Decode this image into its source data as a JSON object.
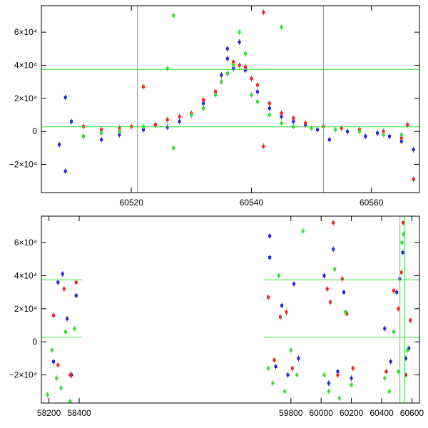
{
  "chart_data": [
    {
      "type": "scatter",
      "xlim": [
        60505,
        60568
      ],
      "ylim": [
        -37000,
        76000
      ],
      "x_ticks": [
        {
          "value": 60520,
          "label": "60520"
        },
        {
          "value": 60540,
          "label": "60540"
        },
        {
          "value": 60560,
          "label": "60560"
        }
      ],
      "y_ticks": [
        {
          "value": -20000,
          "label": "−2×10⁴"
        },
        {
          "value": 0,
          "label": "0"
        },
        {
          "value": 20000,
          "label": "2×10⁴"
        },
        {
          "value": 40000,
          "label": "4×10⁴"
        },
        {
          "value": 60000,
          "label": "6×10⁴"
        }
      ],
      "hlines": [
        37500,
        2800
      ],
      "vlines": [
        60521,
        60552
      ],
      "line_color": "#33dd33",
      "series": [
        {
          "color": "#2222dd",
          "points": [
            [
              60508,
              -8000
            ],
            [
              60509,
              20500
            ],
            [
              60509,
              -24000
            ],
            [
              60510,
              6000
            ],
            [
              60512,
              -3000
            ],
            [
              60515,
              -5000
            ],
            [
              60518,
              -2000
            ],
            [
              60522,
              1000
            ],
            [
              60526,
              2500
            ],
            [
              60528,
              6000
            ],
            [
              60530,
              10000
            ],
            [
              60532,
              17000
            ],
            [
              60534,
              24000
            ],
            [
              60535,
              34000
            ],
            [
              60536,
              44000
            ],
            [
              60536,
              50000
            ],
            [
              60537,
              38000
            ],
            [
              60538,
              54000
            ],
            [
              60539,
              37000
            ],
            [
              60541,
              24000
            ],
            [
              60543,
              14000
            ],
            [
              60545,
              9000
            ],
            [
              60547,
              6000
            ],
            [
              60549,
              4000
            ],
            [
              60551,
              1000
            ],
            [
              60553,
              -5000
            ],
            [
              60556,
              0
            ],
            [
              60559,
              -3000
            ],
            [
              60561,
              -1000
            ],
            [
              60563,
              -3000
            ],
            [
              60565,
              -6000
            ],
            [
              60567,
              -11000
            ]
          ]
        },
        {
          "color": "#ee2222",
          "points": [
            [
              60512,
              3000
            ],
            [
              60515,
              1000
            ],
            [
              60518,
              2000
            ],
            [
              60520,
              3000
            ],
            [
              60522,
              27000
            ],
            [
              60524,
              4000
            ],
            [
              60526,
              7000
            ],
            [
              60528,
              9000
            ],
            [
              60530,
              11000
            ],
            [
              60532,
              19000
            ],
            [
              60534,
              24000
            ],
            [
              60535,
              30000
            ],
            [
              60536,
              35000
            ],
            [
              60537,
              42000
            ],
            [
              60538,
              40000
            ],
            [
              60539,
              39000
            ],
            [
              60540,
              32000
            ],
            [
              60541,
              28000
            ],
            [
              60542,
              72000
            ],
            [
              60542,
              -9000
            ],
            [
              60543,
              17000
            ],
            [
              60545,
              11000
            ],
            [
              60547,
              8000
            ],
            [
              60549,
              5000
            ],
            [
              60552,
              3000
            ],
            [
              60555,
              2000
            ],
            [
              60558,
              1000
            ],
            [
              60562,
              0
            ],
            [
              60565,
              -4000
            ],
            [
              60567,
              -29000
            ],
            [
              60566,
              4000
            ]
          ]
        },
        {
          "color": "#33dd33",
          "points": [
            [
              60512,
              -3000
            ],
            [
              60515,
              -1000
            ],
            [
              60518,
              0
            ],
            [
              60522,
              3000
            ],
            [
              60526,
              38000
            ],
            [
              60527,
              70000
            ],
            [
              60527,
              -10000
            ],
            [
              60530,
              10000
            ],
            [
              60532,
              14000
            ],
            [
              60534,
              22000
            ],
            [
              60535,
              30000
            ],
            [
              60536,
              35000
            ],
            [
              60537,
              40000
            ],
            [
              60538,
              60000
            ],
            [
              60539,
              47000
            ],
            [
              60540,
              22000
            ],
            [
              60541,
              18000
            ],
            [
              60543,
              10000
            ],
            [
              60545,
              5000
            ],
            [
              60547,
              3000
            ],
            [
              60550,
              2000
            ],
            [
              60554,
              1000
            ],
            [
              60558,
              0
            ],
            [
              60562,
              -2000
            ],
            [
              60565,
              -2000
            ],
            [
              60545,
              63000
            ]
          ]
        }
      ]
    },
    {
      "type": "scatter",
      "xlim": [
        58150,
        60650
      ],
      "ylim": [
        -37000,
        76000
      ],
      "x_ticks": [
        {
          "value": 58200,
          "label": "58200"
        },
        {
          "value": 58400,
          "label": "58400"
        },
        {
          "value": 59800,
          "label": "59800"
        },
        {
          "value": 60000,
          "label": "60000"
        },
        {
          "value": 60200,
          "label": "60200"
        },
        {
          "value": 60400,
          "label": "60400"
        },
        {
          "value": 60600,
          "label": "60600"
        }
      ],
      "x_breaks": [
        [
          58420,
          59620
        ]
      ],
      "y_ticks": [
        {
          "value": -20000,
          "label": "−2×10⁴"
        },
        {
          "value": 0,
          "label": "0"
        },
        {
          "value": 20000,
          "label": "2×10⁴"
        },
        {
          "value": 40000,
          "label": "4×10⁴"
        },
        {
          "value": 60000,
          "label": "6×10⁴"
        }
      ],
      "hlines": [
        37500,
        2800
      ],
      "vlines": [
        60521,
        60552
      ],
      "line_color": "#33dd33",
      "series": [
        {
          "color": "#2222dd",
          "points": [
            [
              58230,
              -12000
            ],
            [
              58260,
              36000
            ],
            [
              58290,
              41000
            ],
            [
              58320,
              14000
            ],
            [
              58350,
              -20000
            ],
            [
              58380,
              28000
            ],
            [
              59660,
              64000
            ],
            [
              59660,
              51000
            ],
            [
              59700,
              -15000
            ],
            [
              59740,
              22000
            ],
            [
              59780,
              -20000
            ],
            [
              59820,
              35000
            ],
            [
              59850,
              -10000
            ],
            [
              60020,
              40000
            ],
            [
              60050,
              -25000
            ],
            [
              60080,
              56000
            ],
            [
              60110,
              -18000
            ],
            [
              60150,
              30000
            ],
            [
              60200,
              -22000
            ],
            [
              60420,
              8000
            ],
            [
              60460,
              -12000
            ],
            [
              60500,
              30000
            ],
            [
              60520,
              38000
            ],
            [
              60540,
              54000
            ],
            [
              60560,
              -10000
            ],
            [
              60580,
              -4000
            ]
          ]
        },
        {
          "color": "#ee2222",
          "points": [
            [
              58230,
              16000
            ],
            [
              58260,
              -14000
            ],
            [
              58300,
              32000
            ],
            [
              58340,
              -20000
            ],
            [
              58380,
              36000
            ],
            [
              59650,
              27000
            ],
            [
              59690,
              -11000
            ],
            [
              59730,
              15000
            ],
            [
              59770,
              18000
            ],
            [
              59810,
              -16000
            ],
            [
              60040,
              32000
            ],
            [
              60060,
              24000
            ],
            [
              60080,
              72000
            ],
            [
              60110,
              -20000
            ],
            [
              60140,
              38000
            ],
            [
              60170,
              17000
            ],
            [
              60210,
              -16000
            ],
            [
              60430,
              -18000
            ],
            [
              60480,
              31000
            ],
            [
              60510,
              20000
            ],
            [
              60530,
              42000
            ],
            [
              60542,
              72000
            ],
            [
              60560,
              -20000
            ],
            [
              60590,
              13000
            ]
          ]
        },
        {
          "color": "#33dd33",
          "points": [
            [
              58190,
              -32000
            ],
            [
              58220,
              -5000
            ],
            [
              58250,
              -22000
            ],
            [
              58280,
              -28000
            ],
            [
              58310,
              6000
            ],
            [
              58340,
              -36000
            ],
            [
              58370,
              8000
            ],
            [
              59650,
              -16000
            ],
            [
              59680,
              -25000
            ],
            [
              59720,
              40000
            ],
            [
              59760,
              -30000
            ],
            [
              59800,
              -5000
            ],
            [
              59840,
              -20000
            ],
            [
              59880,
              67000
            ],
            [
              60020,
              -20000
            ],
            [
              60050,
              -30000
            ],
            [
              60090,
              44000
            ],
            [
              60120,
              -34000
            ],
            [
              60160,
              18000
            ],
            [
              60200,
              -26000
            ],
            [
              60420,
              -22000
            ],
            [
              60450,
              -30000
            ],
            [
              60480,
              6000
            ],
            [
              60510,
              -18000
            ],
            [
              60535,
              60000
            ],
            [
              60545,
              65000
            ],
            [
              60570,
              -5000
            ]
          ]
        }
      ]
    }
  ]
}
